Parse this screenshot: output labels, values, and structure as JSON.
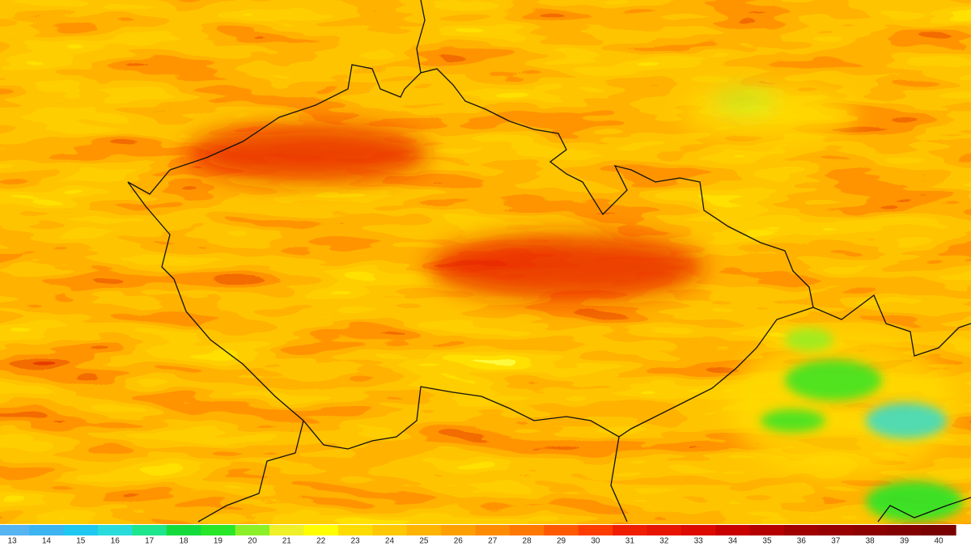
{
  "legend": {
    "ticks": [
      13,
      14,
      15,
      16,
      17,
      18,
      19,
      20,
      21,
      22,
      23,
      24,
      25,
      26,
      27,
      28,
      29,
      30,
      31,
      32,
      33,
      34,
      35,
      36,
      37,
      38,
      39,
      40
    ],
    "colors": [
      "#56b4f0",
      "#3cb4f0",
      "#1ec8f0",
      "#28dcdc",
      "#1ee68c",
      "#14dc3c",
      "#28e628",
      "#8cf028",
      "#f0f028",
      "#ffff00",
      "#ffdc00",
      "#ffc800",
      "#ffb400",
      "#ffa000",
      "#ff8c00",
      "#ff7800",
      "#ff5a00",
      "#ff3c00",
      "#f01e00",
      "#e61400",
      "#dc0a00",
      "#c80000",
      "#b40000",
      "#a00000",
      "#960000",
      "#8c0000",
      "#820000",
      "#780000"
    ]
  }
}
